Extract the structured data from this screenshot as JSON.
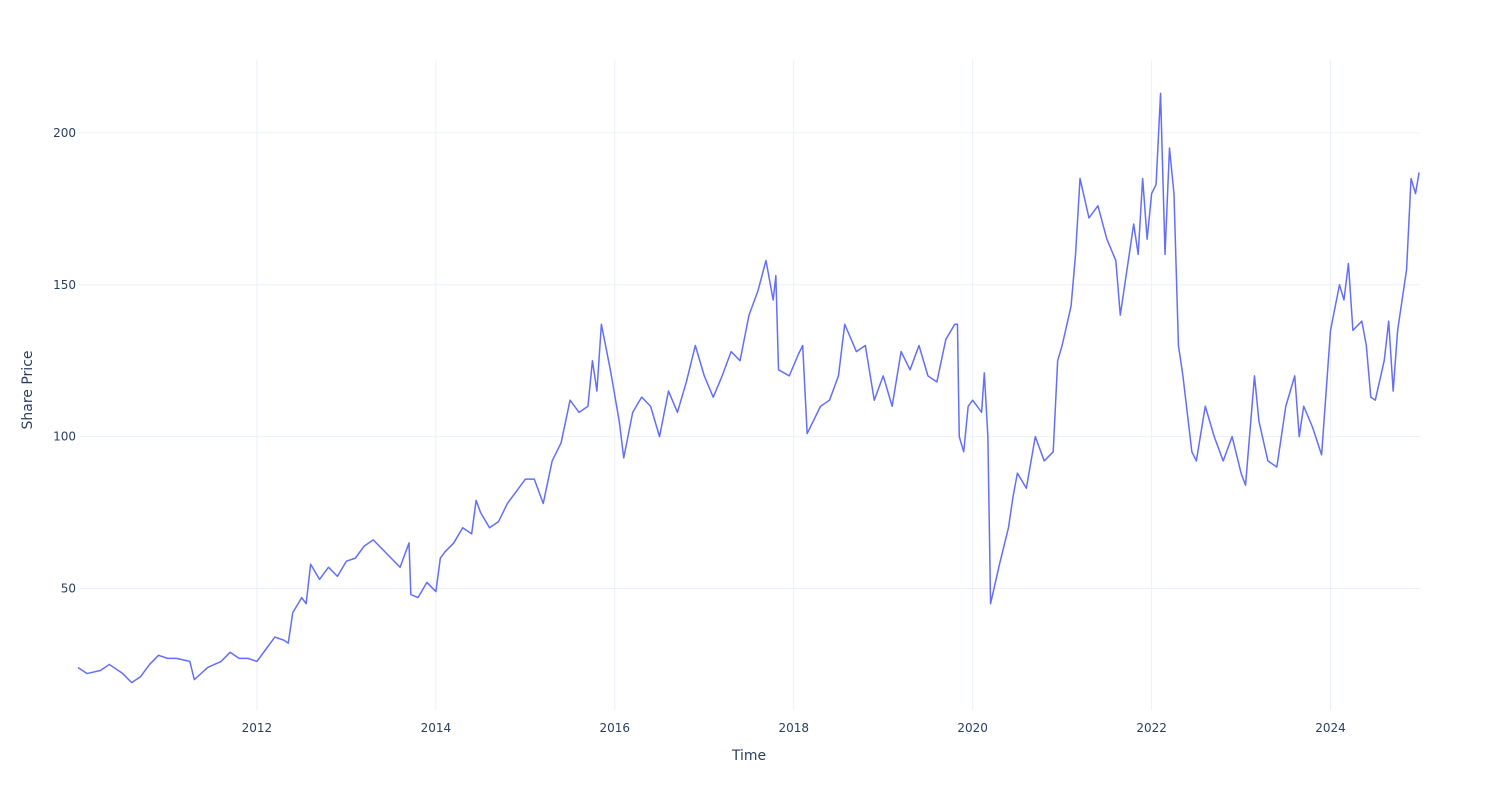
{
  "chart_data": {
    "type": "line",
    "x_label": "Time",
    "y_label": "Share Price",
    "color": "#636efa",
    "grid": true,
    "xlim": [
      2010.0,
      2025.0
    ],
    "ylim": [
      10,
      224
    ],
    "xticks": [
      2012,
      2014,
      2016,
      2018,
      2020,
      2022,
      2024
    ],
    "yticks": [
      50,
      100,
      150,
      200
    ],
    "x": [
      2010.0,
      2010.1,
      2010.25,
      2010.35,
      2010.5,
      2010.6,
      2010.7,
      2010.8,
      2010.9,
      2011.0,
      2011.1,
      2011.25,
      2011.3,
      2011.45,
      2011.6,
      2011.7,
      2011.8,
      2011.9,
      2012.0,
      2012.1,
      2012.2,
      2012.3,
      2012.35,
      2012.4,
      2012.5,
      2012.55,
      2012.6,
      2012.7,
      2012.8,
      2012.9,
      2013.0,
      2013.1,
      2013.2,
      2013.3,
      2013.4,
      2013.5,
      2013.6,
      2013.7,
      2013.72,
      2013.8,
      2013.9,
      2014.0,
      2014.05,
      2014.1,
      2014.2,
      2014.3,
      2014.4,
      2014.45,
      2014.5,
      2014.6,
      2014.7,
      2014.8,
      2014.9,
      2015.0,
      2015.1,
      2015.2,
      2015.3,
      2015.4,
      2015.5,
      2015.6,
      2015.7,
      2015.75,
      2015.8,
      2015.85,
      2015.95,
      2016.05,
      2016.1,
      2016.2,
      2016.3,
      2016.4,
      2016.5,
      2016.6,
      2016.7,
      2016.8,
      2016.9,
      2017.0,
      2017.1,
      2017.2,
      2017.3,
      2017.4,
      2017.5,
      2017.6,
      2017.69,
      2017.77,
      2017.8,
      2017.83,
      2017.95,
      2018.05,
      2018.1,
      2018.15,
      2018.3,
      2018.4,
      2018.5,
      2018.57,
      2018.7,
      2018.8,
      2018.9,
      2019.0,
      2019.1,
      2019.2,
      2019.3,
      2019.4,
      2019.5,
      2019.6,
      2019.7,
      2019.8,
      2019.83,
      2019.85,
      2019.9,
      2019.95,
      2020.0,
      2020.1,
      2020.13,
      2020.17,
      2020.2,
      2020.3,
      2020.4,
      2020.45,
      2020.5,
      2020.6,
      2020.7,
      2020.8,
      2020.9,
      2020.95,
      2021.0,
      2021.1,
      2021.15,
      2021.2,
      2021.3,
      2021.4,
      2021.5,
      2021.6,
      2021.65,
      2021.7,
      2021.8,
      2021.85,
      2021.9,
      2021.95,
      2022.0,
      2022.05,
      2022.1,
      2022.15,
      2022.2,
      2022.25,
      2022.3,
      2022.35,
      2022.45,
      2022.5,
      2022.6,
      2022.7,
      2022.8,
      2022.9,
      2023.0,
      2023.05,
      2023.15,
      2023.2,
      2023.3,
      2023.4,
      2023.5,
      2023.6,
      2023.65,
      2023.7,
      2023.8,
      2023.9,
      2024.0,
      2024.1,
      2024.15,
      2024.2,
      2024.25,
      2024.35,
      2024.4,
      2024.45,
      2024.5,
      2024.6,
      2024.65,
      2024.7,
      2024.75,
      2024.8,
      2024.85,
      2024.9,
      2024.95,
      2024.99
    ],
    "values": [
      24,
      22,
      23,
      25,
      22,
      19,
      21,
      25,
      28,
      27,
      27,
      26,
      20,
      24,
      26,
      29,
      27,
      27,
      26,
      30,
      34,
      33,
      32,
      42,
      47,
      45,
      58,
      53,
      57,
      54,
      59,
      60,
      64,
      66,
      63,
      60,
      57,
      65,
      48,
      47,
      52,
      49,
      60,
      62,
      65,
      70,
      68,
      79,
      75,
      70,
      72,
      78,
      82,
      86,
      86,
      78,
      92,
      98,
      112,
      108,
      110,
      125,
      115,
      137,
      122,
      105,
      93,
      108,
      113,
      110,
      100,
      115,
      108,
      118,
      130,
      120,
      113,
      120,
      128,
      125,
      140,
      148,
      158,
      145,
      153,
      122,
      120,
      127,
      130,
      101,
      110,
      112,
      120,
      137,
      128,
      130,
      112,
      120,
      110,
      128,
      122,
      130,
      120,
      118,
      132,
      137,
      137,
      100,
      95,
      110,
      112,
      108,
      121,
      100,
      45,
      58,
      70,
      80,
      88,
      83,
      100,
      92,
      95,
      125,
      130,
      143,
      160,
      185,
      172,
      176,
      165,
      158,
      140,
      150,
      170,
      160,
      185,
      165,
      180,
      183,
      213,
      160,
      195,
      180,
      130,
      120,
      95,
      92,
      110,
      100,
      92,
      100,
      88,
      84,
      120,
      105,
      92,
      90,
      110,
      120,
      100,
      110,
      103,
      94,
      135,
      150,
      145,
      157,
      135,
      138,
      130,
      113,
      112,
      125,
      138,
      115,
      135,
      145,
      155,
      185,
      180,
      187
    ]
  }
}
